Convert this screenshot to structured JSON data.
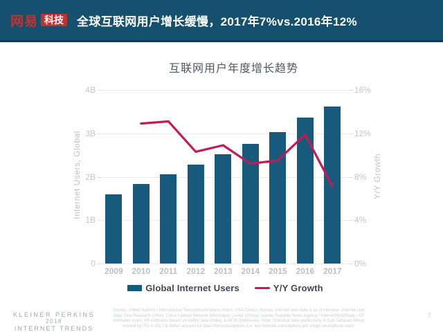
{
  "header": {
    "logo_brand": "网易",
    "logo_sub": "科技",
    "title": "全球互联网用户增长缓慢，2017年7%vs.2016年12%"
  },
  "chart": {
    "title": "互联网用户年度增长趋势",
    "left_axis_title": "Internet Users, Global",
    "right_axis_title": "Y/Y Growth",
    "left_ticks": [
      "4B",
      "3B",
      "2B",
      "1B",
      "0"
    ],
    "right_ticks": [
      "16%",
      "12%",
      "8%",
      "4%",
      "0%"
    ]
  },
  "chart_data": {
    "type": "bar",
    "title": "互联网用户年度增长趋势",
    "categories": [
      "2009",
      "2010",
      "2011",
      "2012",
      "2013",
      "2014",
      "2015",
      "2016",
      "2017"
    ],
    "series": [
      {
        "name": "Global Internet Users",
        "type": "bar",
        "axis": "left",
        "unit": "B",
        "values": [
          1.6,
          1.83,
          2.06,
          2.28,
          2.52,
          2.75,
          3.02,
          3.37,
          3.62
        ]
      },
      {
        "name": "Y/Y Growth",
        "type": "line",
        "axis": "right",
        "unit": "%",
        "values": [
          null,
          12.9,
          13.1,
          10.3,
          10.9,
          9.2,
          9.5,
          11.9,
          7.1
        ]
      }
    ],
    "left_ylabel": "Internet Users, Global",
    "right_ylabel": "Y/Y Growth",
    "left_ylim": [
      0,
      4
    ],
    "right_ylim": [
      0,
      16
    ],
    "grid": true,
    "legend_position": "bottom"
  },
  "legend": {
    "items": [
      {
        "label": "Global Internet Users",
        "type": "bar"
      },
      {
        "label": "Y/Y Growth",
        "type": "line"
      }
    ]
  },
  "footer": {
    "brand_lines": [
      "KLEINER PERKINS",
      "2018",
      "INTERNET TRENDS"
    ],
    "source_lines": [
      "Source: United Nations / International Telecommunications Union, USA Census Bureau. Internet user data is as of mid-year. Internet user",
      "data: Pew Research (USA), China Internet Network Information Center (China), Islamic Republic News Agency / InternetWorldStats / KP",
      "estimates (Iran), KP estimates based on IAMAI data (India), & APJII (Indonesia). Note: Historical data (particularly in Sub-Saharan Africa)",
      "revised by ITU in 2017 to better account for dual-SIM subscriptions (i.e. two internet subscriptions per single smartphone user)."
    ],
    "page_number": "7"
  },
  "colors": {
    "header_bg": "#15506E",
    "header_border": "#0C3A54",
    "logo_red": "#C5302C",
    "bar": "#175A7C",
    "line": "#C41A54",
    "gridline": "#E9EBED"
  }
}
